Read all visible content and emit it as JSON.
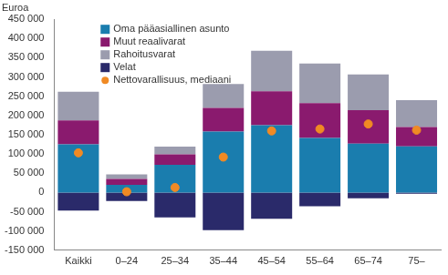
{
  "chart_data": {
    "type": "bar",
    "ylabel": "Euroa",
    "categories": [
      "Kaikki",
      "0–24",
      "25–34",
      "35–44",
      "45–54",
      "55–64",
      "65–74",
      "75–"
    ],
    "stacked": true,
    "grid": false,
    "legend": "top-left",
    "series": [
      {
        "name": "Oma pääasiallinen asunto",
        "color": "#1a7dae",
        "type": "bar",
        "values": [
          125000,
          20000,
          72000,
          158000,
          175000,
          142000,
          127000,
          120000
        ]
      },
      {
        "name": "Muut reaalivarat",
        "color": "#8a1a6e",
        "type": "bar",
        "values": [
          62000,
          15000,
          27000,
          62000,
          88000,
          90000,
          87000,
          50000
        ]
      },
      {
        "name": "Rahoitusvarat",
        "color": "#9b9cae",
        "type": "bar",
        "values": [
          75000,
          12000,
          20000,
          62000,
          105000,
          103000,
          93000,
          70000
        ]
      },
      {
        "name": "Velat",
        "color": "#2a2a6a",
        "type": "bar",
        "values": [
          -47000,
          -22000,
          -65000,
          -98000,
          -68000,
          -36000,
          -15000,
          -3000
        ]
      },
      {
        "name": "Nettovarallisuus, mediaani",
        "color": "#f08a24",
        "type": "scatter",
        "marker": "circle",
        "values": [
          103000,
          2000,
          13000,
          92000,
          160000,
          165000,
          178000,
          162000
        ]
      }
    ],
    "ylim": [
      -150000,
      450000
    ],
    "yticks": [
      {
        "value": -150000,
        "label": "-150 000"
      },
      {
        "value": -100000,
        "label": "-100 000"
      },
      {
        "value": -50000,
        "label": "-50 000"
      },
      {
        "value": 0,
        "label": "0"
      },
      {
        "value": 50000,
        "label": "50 000"
      },
      {
        "value": 100000,
        "label": "100 000"
      },
      {
        "value": 150000,
        "label": "150 000"
      },
      {
        "value": 200000,
        "label": "200 000"
      },
      {
        "value": 250000,
        "label": "250 000"
      },
      {
        "value": 300000,
        "label": "300 000"
      },
      {
        "value": 350000,
        "label": "350 000"
      },
      {
        "value": 400000,
        "label": "400 000"
      },
      {
        "value": 450000,
        "label": "450 000"
      }
    ]
  }
}
